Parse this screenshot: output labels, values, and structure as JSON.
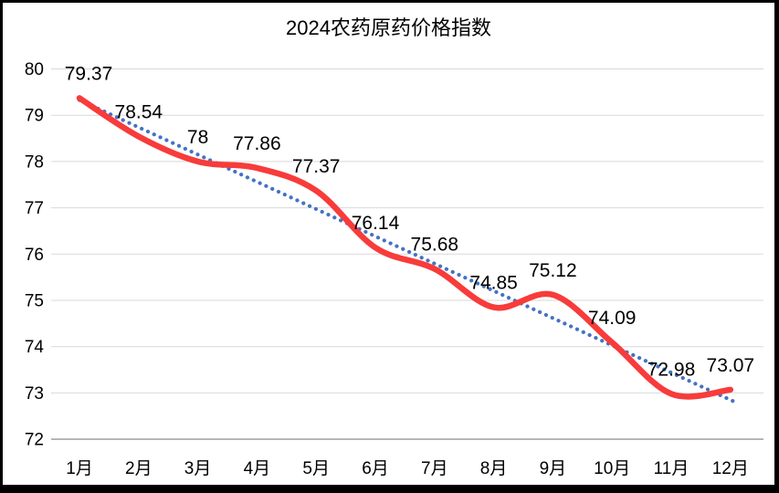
{
  "chart_data": {
    "type": "line",
    "title": "2024农药原药价格指数",
    "categories": [
      "1月",
      "2月",
      "3月",
      "4月",
      "5月",
      "6月",
      "7月",
      "8月",
      "9月",
      "10月",
      "11月",
      "12月"
    ],
    "series": [
      {
        "name": "",
        "style": "smooth",
        "color": "#f83b3b",
        "values": [
          79.37,
          78.54,
          78,
          77.86,
          77.37,
          76.14,
          75.68,
          74.85,
          75.12,
          74.09,
          72.98,
          73.07
        ],
        "data_labels": [
          "79.37",
          "78.54",
          "78",
          "77.86",
          "77.37",
          "76.14",
          "75.68",
          "74.85",
          "75.12",
          "74.09",
          "72.98",
          "73.07"
        ]
      }
    ],
    "trendline": {
      "type": "linear",
      "style": "dotted",
      "color": "#4472c4"
    },
    "xlabel": "",
    "ylabel": "",
    "ylim": [
      72,
      80
    ],
    "y_ticks": [
      80,
      79,
      78,
      77,
      76,
      75,
      74,
      73,
      72
    ],
    "grid": true,
    "legend": "none",
    "colors": {
      "gridline": "#d9d9d9",
      "axis_line": "#a6a6a6",
      "label_text": "#000000",
      "background": "#ffffff"
    }
  }
}
